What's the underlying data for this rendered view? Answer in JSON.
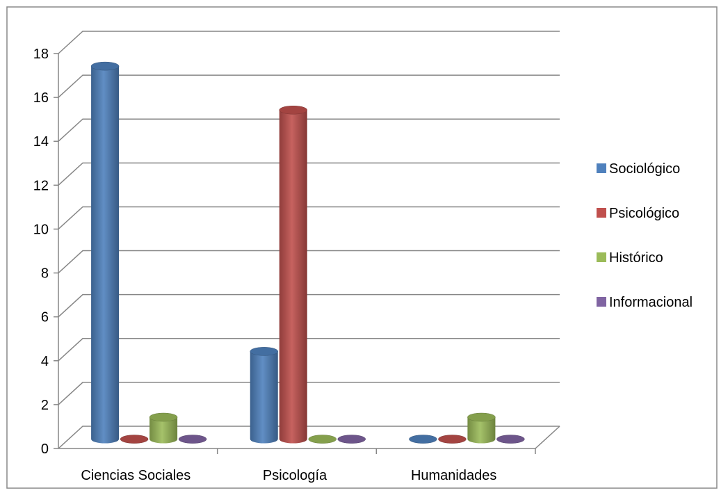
{
  "chart_data": {
    "type": "bar",
    "title": "",
    "xlabel": "",
    "ylabel": "",
    "categories": [
      "Ciencias Sociales",
      "Psicología",
      "Humanidades"
    ],
    "series": [
      {
        "name": "Sociológico",
        "values": [
          17,
          4,
          0
        ],
        "color": "#4F81BD"
      },
      {
        "name": "Psicológico",
        "values": [
          0,
          15,
          0
        ],
        "color": "#C0504D"
      },
      {
        "name": "Histórico",
        "values": [
          1,
          0,
          1
        ],
        "color": "#9BBB59"
      },
      {
        "name": "Informacional",
        "values": [
          0,
          0,
          0
        ],
        "color": "#8064A2"
      }
    ],
    "ylim": [
      0,
      18
    ],
    "yticks": [
      0,
      2,
      4,
      6,
      8,
      10,
      12,
      14,
      16,
      18
    ],
    "grid": true,
    "legend": "right",
    "style": "3d-cylinder"
  }
}
